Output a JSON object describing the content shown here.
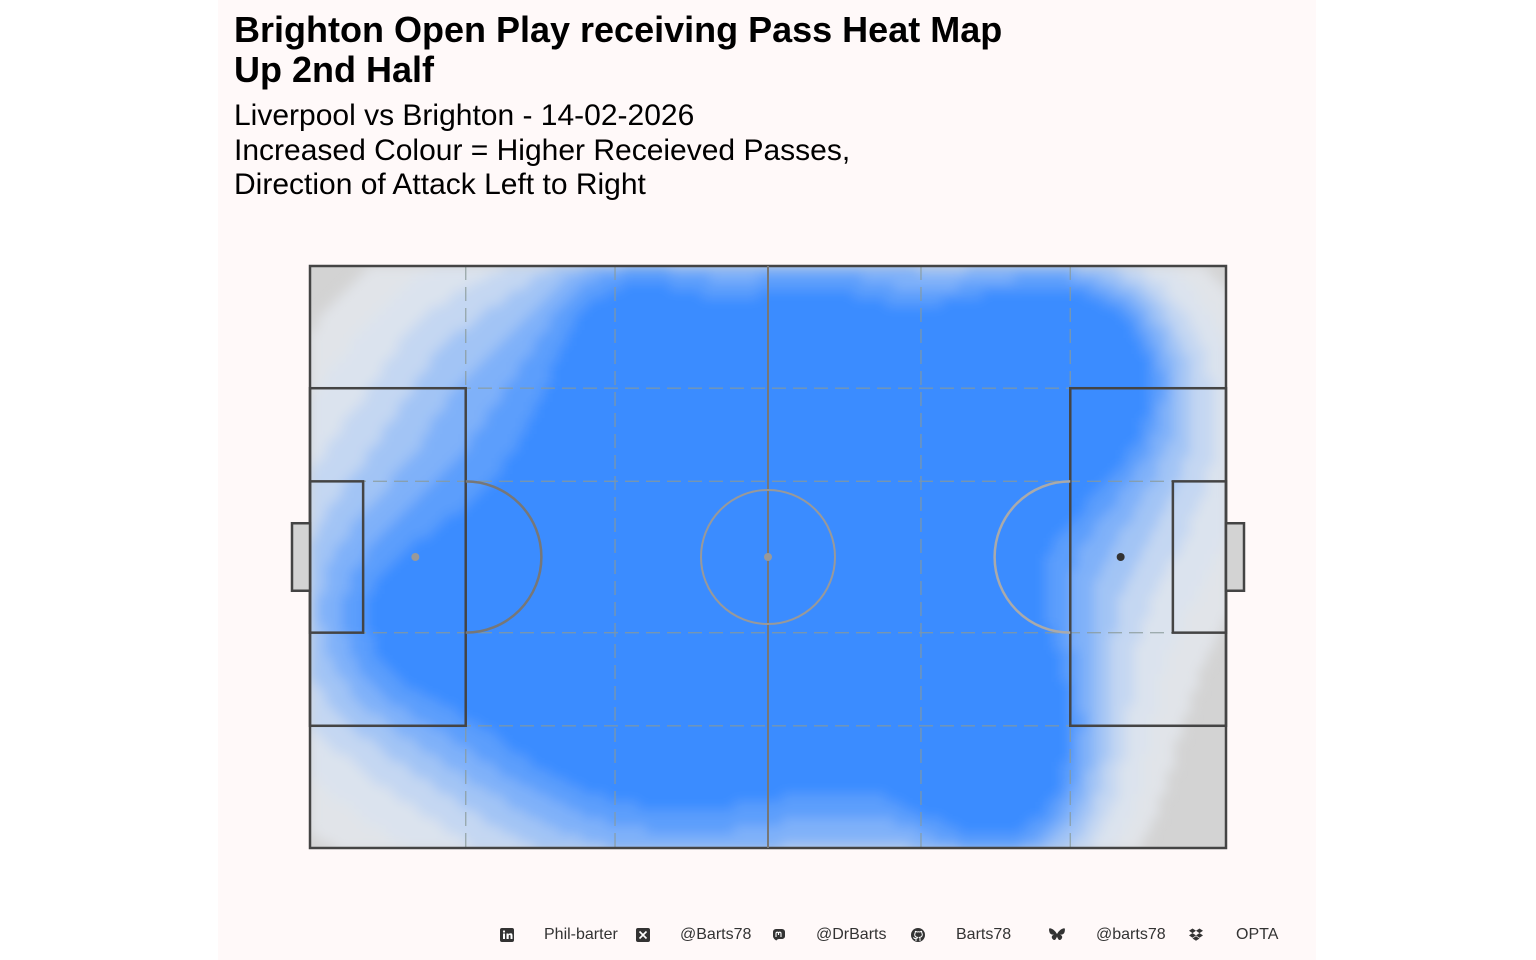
{
  "chart_data": {
    "type": "heatmap",
    "title": [
      "Brighton Open Play receiving Pass Heat Map",
      "Up 2nd Half"
    ],
    "subtitle": [
      "Liverpool vs Brighton - 14-02-2026",
      "Increased Colour = Higher Receieved Passes,",
      "Direction of Attack Left to Right"
    ],
    "x_range": [
      0,
      100
    ],
    "y_range": [
      0,
      100
    ],
    "attack_direction": "left-to-right",
    "density_levels": 8,
    "colors": {
      "panel_background": "#fff9f9",
      "pitch_fill": "#d3d3d3",
      "low_density": "#e7e6e4",
      "high_density": "#3b8cff",
      "lines": "#444444",
      "zone_lines": "#8a9a98"
    },
    "hotspots": [
      {
        "x": 83.5,
        "y": 84.0,
        "intensity": 1.0
      },
      {
        "x": 74.5,
        "y": 77.0,
        "intensity": 0.85
      },
      {
        "x": 35.5,
        "y": 91.0,
        "intensity": 0.7
      },
      {
        "x": 53.5,
        "y": 82.0,
        "intensity": 0.65
      },
      {
        "x": 37.0,
        "y": 65.0,
        "intensity": 0.55
      },
      {
        "x": 75.0,
        "y": 22.5,
        "intensity": 0.6
      },
      {
        "x": 77.0,
        "y": 6.5,
        "intensity": 0.5
      },
      {
        "x": 10.0,
        "y": 38.0,
        "intensity": 0.3
      }
    ]
  },
  "footer": {
    "items": [
      {
        "icon": "linkedin-icon",
        "label": "Phil-barter"
      },
      {
        "icon": "x-twitter-icon",
        "label": "@Barts78"
      },
      {
        "icon": "mastodon-icon",
        "label": "@DrBarts"
      },
      {
        "icon": "github-icon",
        "label": "Barts78"
      },
      {
        "icon": "bluesky-icon",
        "label": "@barts78"
      },
      {
        "icon": "dropbox-icon",
        "label": "OPTA"
      }
    ]
  }
}
